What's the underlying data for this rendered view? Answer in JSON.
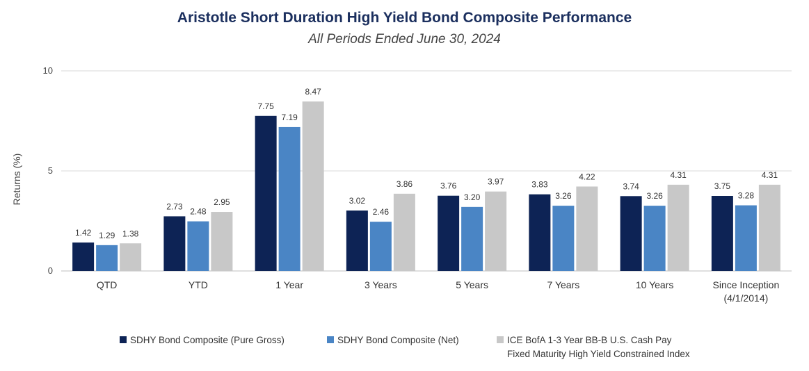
{
  "chart_data": {
    "type": "bar",
    "title": "Aristotle Short Duration High Yield Bond Composite Performance",
    "subtitle": "All Periods Ended June 30, 2024",
    "xlabel": "",
    "ylabel": "Returns (%)",
    "ylim": [
      0,
      10
    ],
    "yticks": [
      "0",
      "5",
      "10"
    ],
    "grid": true,
    "legend_position": "bottom",
    "categories": [
      "QTD",
      "YTD",
      "1 Year",
      "3 Years",
      "5 Years",
      "7 Years",
      "10 Years",
      "Since Inception (4/1/2014)"
    ],
    "category_lines": [
      [
        "QTD"
      ],
      [
        "YTD"
      ],
      [
        "1 Year"
      ],
      [
        "3 Years"
      ],
      [
        "5 Years"
      ],
      [
        "7 Years"
      ],
      [
        "10 Years"
      ],
      [
        "Since Inception",
        "(4/1/2014)"
      ]
    ],
    "series": [
      {
        "name": "SDHY Bond Composite (Pure Gross)",
        "color": "#0d2355",
        "values": [
          1.42,
          2.73,
          7.75,
          3.02,
          3.76,
          3.83,
          3.74,
          3.75
        ],
        "labels": [
          "1.42",
          "2.73",
          "7.75",
          "3.02",
          "3.76",
          "3.83",
          "3.74",
          "3.75"
        ]
      },
      {
        "name": "SDHY Bond Composite (Net)",
        "color": "#4a85c5",
        "values": [
          1.29,
          2.48,
          7.19,
          2.46,
          3.2,
          3.26,
          3.26,
          3.28
        ],
        "labels": [
          "1.29",
          "2.48",
          "7.19",
          "2.46",
          "3.20",
          "3.26",
          "3.26",
          "3.28"
        ]
      },
      {
        "name": "ICE BofA 1-3 Year BB-B U.S. Cash Pay Fixed Maturity High Yield Constrained Index",
        "color": "#c8c8c8",
        "values": [
          1.38,
          2.95,
          8.47,
          3.86,
          3.97,
          4.22,
          4.31,
          4.31
        ],
        "labels": [
          "1.38",
          "2.95",
          "8.47",
          "3.86",
          "3.97",
          "4.22",
          "4.31",
          "4.31"
        ]
      }
    ],
    "legend": {
      "item1": "SDHY Bond Composite (Pure Gross)",
      "item2": "SDHY Bond Composite (Net)",
      "item3_line1": "ICE BofA 1-3 Year BB-B U.S. Cash Pay",
      "item3_line2": "Fixed Maturity High Yield Constrained Index"
    }
  }
}
